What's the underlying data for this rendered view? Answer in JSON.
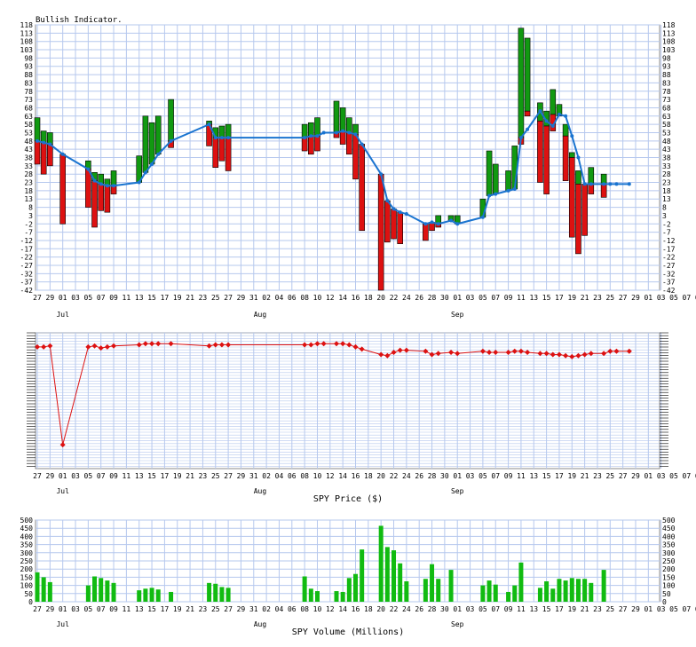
{
  "chart_data": [
    {
      "type": "bar",
      "title": "Bullish Indicator.",
      "ylim": [
        -42,
        118
      ],
      "yticks": [
        118,
        113,
        108,
        103,
        98,
        93,
        88,
        83,
        78,
        73,
        68,
        63,
        58,
        53,
        48,
        43,
        38,
        33,
        28,
        23,
        18,
        13,
        8,
        3,
        -2,
        -7,
        -12,
        -17,
        -22,
        -27,
        -32,
        -37,
        -42
      ],
      "x_tick_labels": [
        "27",
        "29",
        "01",
        "03",
        "05",
        "07",
        "09",
        "11",
        "13",
        "15",
        "17",
        "19",
        "21",
        "23",
        "25",
        "27",
        "29",
        "31",
        "02",
        "04",
        "06",
        "08",
        "10",
        "12",
        "14",
        "16",
        "18",
        "20",
        "22",
        "24",
        "26",
        "28",
        "30",
        "01",
        "03",
        "05",
        "07",
        "09",
        "11",
        "13",
        "15",
        "17",
        "19",
        "21",
        "23",
        "25",
        "27",
        "29",
        "01",
        "03",
        "05",
        "07",
        "09"
      ],
      "months": [
        {
          "label": "Jul",
          "day": 4
        },
        {
          "label": "Aug",
          "day": 35
        },
        {
          "label": "Sep",
          "day": 66
        }
      ],
      "bullish_series": {
        "name": "Bullish Indicator",
        "day": [
          0,
          1,
          2,
          4,
          8,
          9,
          10,
          11,
          12,
          16,
          17,
          18,
          19,
          21,
          27,
          28,
          29,
          30,
          42,
          43,
          44,
          45,
          47,
          48,
          49,
          50,
          51,
          54,
          55,
          56,
          57,
          58,
          61,
          62,
          63,
          65,
          66,
          70,
          71,
          72,
          74,
          75,
          76,
          77,
          79,
          80,
          81,
          82,
          83,
          84,
          85,
          86,
          87,
          89,
          90,
          91,
          93
        ],
        "value": [
          48,
          47,
          46,
          40,
          31,
          24,
          22,
          21,
          21,
          23,
          29,
          34,
          40,
          48,
          58,
          50,
          50,
          50,
          50,
          51,
          51,
          53,
          53,
          54,
          53,
          52,
          46,
          28,
          12,
          7,
          5,
          4,
          -2,
          -1,
          -2,
          0,
          -2,
          2,
          15,
          16,
          18,
          19,
          50,
          55,
          66,
          60,
          57,
          64,
          63,
          51,
          38,
          22,
          22,
          22,
          22,
          22,
          22
        ]
      },
      "bars": [
        {
          "day": 0,
          "open": 48,
          "close": 62
        },
        {
          "day": 0,
          "open": 48,
          "close": 34
        },
        {
          "day": 1,
          "open": 47,
          "close": 54
        },
        {
          "day": 1,
          "open": 47,
          "close": 28
        },
        {
          "day": 2,
          "open": 46,
          "close": 53
        },
        {
          "day": 2,
          "open": 46,
          "close": 33
        },
        {
          "day": 4,
          "open": 40,
          "close": -2
        },
        {
          "day": 8,
          "open": 31,
          "close": 36
        },
        {
          "day": 8,
          "open": 31,
          "close": 8
        },
        {
          "day": 9,
          "open": 24,
          "close": 29
        },
        {
          "day": 9,
          "open": 24,
          "close": -4
        },
        {
          "day": 10,
          "open": 22,
          "close": 28
        },
        {
          "day": 10,
          "open": 22,
          "close": 6
        },
        {
          "day": 11,
          "open": 21,
          "close": 25
        },
        {
          "day": 11,
          "open": 21,
          "close": 5
        },
        {
          "day": 12,
          "open": 21,
          "close": 30
        },
        {
          "day": 12,
          "open": 21,
          "close": 16
        },
        {
          "day": 16,
          "open": 23,
          "close": 39
        },
        {
          "day": 17,
          "open": 29,
          "close": 63
        },
        {
          "day": 18,
          "open": 34,
          "close": 59
        },
        {
          "day": 19,
          "open": 40,
          "close": 63
        },
        {
          "day": 21,
          "open": 48,
          "close": 73
        },
        {
          "day": 21,
          "open": 48,
          "close": 44
        },
        {
          "day": 27,
          "open": 58,
          "close": 60
        },
        {
          "day": 27,
          "open": 58,
          "close": 45
        },
        {
          "day": 28,
          "open": 50,
          "close": 56
        },
        {
          "day": 28,
          "open": 50,
          "close": 32
        },
        {
          "day": 29,
          "open": 50,
          "close": 57
        },
        {
          "day": 29,
          "open": 50,
          "close": 36
        },
        {
          "day": 30,
          "open": 50,
          "close": 58
        },
        {
          "day": 30,
          "open": 50,
          "close": 30
        },
        {
          "day": 42,
          "open": 50,
          "close": 58
        },
        {
          "day": 42,
          "open": 50,
          "close": 42
        },
        {
          "day": 43,
          "open": 51,
          "close": 59
        },
        {
          "day": 43,
          "open": 51,
          "close": 40
        },
        {
          "day": 44,
          "open": 51,
          "close": 62
        },
        {
          "day": 44,
          "open": 51,
          "close": 42
        },
        {
          "day": 47,
          "open": 53,
          "close": 72
        },
        {
          "day": 47,
          "open": 53,
          "close": 50
        },
        {
          "day": 48,
          "open": 54,
          "close": 68
        },
        {
          "day": 48,
          "open": 54,
          "close": 46
        },
        {
          "day": 49,
          "open": 53,
          "close": 62
        },
        {
          "day": 49,
          "open": 53,
          "close": 40
        },
        {
          "day": 50,
          "open": 52,
          "close": 58
        },
        {
          "day": 50,
          "open": 52,
          "close": 25
        },
        {
          "day": 51,
          "open": 46,
          "close": 44
        },
        {
          "day": 51,
          "open": 46,
          "close": -6
        },
        {
          "day": 54,
          "open": 28,
          "close": -42
        },
        {
          "day": 55,
          "open": 12,
          "close": -13
        },
        {
          "day": 56,
          "open": 7,
          "close": -11
        },
        {
          "day": 57,
          "open": 5,
          "close": -14
        },
        {
          "day": 61,
          "open": -2,
          "close": -12
        },
        {
          "day": 62,
          "open": -1,
          "close": -6
        },
        {
          "day": 63,
          "open": -2,
          "close": 3
        },
        {
          "day": 63,
          "open": -2,
          "close": -4
        },
        {
          "day": 65,
          "open": 0,
          "close": 3
        },
        {
          "day": 66,
          "open": -2,
          "close": 3
        },
        {
          "day": 70,
          "open": 2,
          "close": 13
        },
        {
          "day": 71,
          "open": 15,
          "close": 42
        },
        {
          "day": 72,
          "open": 16,
          "close": 34
        },
        {
          "day": 74,
          "open": 18,
          "close": 30
        },
        {
          "day": 75,
          "open": 19,
          "close": 45
        },
        {
          "day": 76,
          "open": 50,
          "close": 116
        },
        {
          "day": 76,
          "open": 50,
          "close": 46
        },
        {
          "day": 77,
          "open": 66,
          "close": 110
        },
        {
          "day": 77,
          "open": 66,
          "close": 63
        },
        {
          "day": 79,
          "open": 60,
          "close": 71
        },
        {
          "day": 79,
          "open": 60,
          "close": 23
        },
        {
          "day": 80,
          "open": 57,
          "close": 66
        },
        {
          "day": 80,
          "open": 57,
          "close": 16
        },
        {
          "day": 81,
          "open": 64,
          "close": 79
        },
        {
          "day": 81,
          "open": 64,
          "close": 54
        },
        {
          "day": 82,
          "open": 63,
          "close": 70
        },
        {
          "day": 83,
          "open": 51,
          "close": 58
        },
        {
          "day": 83,
          "open": 51,
          "close": 24
        },
        {
          "day": 84,
          "open": 38,
          "close": 41
        },
        {
          "day": 84,
          "open": 38,
          "close": -10
        },
        {
          "day": 85,
          "open": 22,
          "close": 30
        },
        {
          "day": 85,
          "open": 22,
          "close": -20
        },
        {
          "day": 86,
          "open": 22,
          "close": -9
        },
        {
          "day": 87,
          "open": 22,
          "close": 32
        },
        {
          "day": 87,
          "open": 22,
          "close": 16
        },
        {
          "day": 89,
          "open": 22,
          "close": 28
        },
        {
          "day": 89,
          "open": 22,
          "close": 14
        }
      ],
      "colors": {
        "up": "#119911",
        "down": "#dd1111",
        "line": "#1a74d0",
        "grid": "#b6c8ee"
      }
    },
    {
      "type": "line",
      "xlabel": "SPY Price ($)",
      "x_tick_labels": [
        "27",
        "29",
        "01",
        "03",
        "05",
        "07",
        "09",
        "11",
        "13",
        "15",
        "17",
        "19",
        "21",
        "23",
        "25",
        "27",
        "29",
        "31",
        "02",
        "04",
        "06",
        "08",
        "10",
        "12",
        "14",
        "16",
        "18",
        "20",
        "22",
        "24",
        "26",
        "28",
        "30",
        "01",
        "03",
        "05",
        "07",
        "09",
        "11",
        "13",
        "15",
        "17",
        "19",
        "21",
        "23",
        "25",
        "27",
        "29",
        "01",
        "03",
        "05",
        "07",
        "09"
      ],
      "months": [
        {
          "label": "Jul",
          "day": 4
        },
        {
          "label": "Aug",
          "day": 35
        },
        {
          "label": "Sep",
          "day": 66
        }
      ],
      "series": [
        {
          "day": [
            0,
            1,
            2,
            4,
            8,
            9,
            10,
            11,
            12,
            16,
            17,
            18,
            19,
            21,
            27,
            28,
            29,
            30,
            42,
            43,
            44,
            45,
            47,
            48,
            49,
            50,
            51,
            54,
            55,
            56,
            57,
            58,
            61,
            62,
            63,
            65,
            66,
            70,
            71,
            72,
            74,
            75,
            76,
            77,
            79,
            80,
            81,
            82,
            83,
            84,
            85,
            86,
            87,
            89,
            90,
            91,
            93
          ],
          "price": [
            272,
            272,
            273,
            182,
            272,
            273,
            271,
            272,
            273,
            274,
            275,
            275,
            275,
            275,
            273,
            274,
            274,
            274,
            274,
            274,
            275,
            275,
            275,
            275,
            274,
            272,
            270,
            265,
            264,
            267,
            269,
            269,
            268,
            265,
            266,
            267,
            266,
            268,
            267,
            267,
            267,
            268,
            268,
            267,
            266,
            266,
            265,
            265,
            264,
            263,
            264,
            265,
            266,
            266,
            268,
            268,
            268
          ]
        }
      ],
      "colors": {
        "line": "#dd1111",
        "grid": "#b6c8ee"
      }
    },
    {
      "type": "bar",
      "xlabel": "SPY Volume (Millions)",
      "ylim": [
        0,
        500
      ],
      "yticks": [
        500,
        450,
        400,
        350,
        300,
        250,
        200,
        150,
        100,
        50,
        0
      ],
      "x_tick_labels": [
        "27",
        "29",
        "01",
        "03",
        "05",
        "07",
        "09",
        "11",
        "13",
        "15",
        "17",
        "19",
        "21",
        "23",
        "25",
        "27",
        "29",
        "31",
        "02",
        "04",
        "06",
        "08",
        "10",
        "12",
        "14",
        "16",
        "18",
        "20",
        "22",
        "24",
        "26",
        "28",
        "30",
        "01",
        "03",
        "05",
        "07",
        "09",
        "11",
        "13",
        "15",
        "17",
        "19",
        "21",
        "23",
        "25",
        "27",
        "29",
        "01",
        "03",
        "05",
        "07",
        "09"
      ],
      "months": [
        {
          "label": "Jul",
          "day": 4
        },
        {
          "label": "Aug",
          "day": 35
        },
        {
          "label": "Sep",
          "day": 66
        }
      ],
      "series": [
        {
          "day": [
            0,
            1,
            2,
            8,
            9,
            10,
            11,
            12,
            16,
            17,
            18,
            19,
            21,
            27,
            28,
            29,
            30,
            42,
            43,
            44,
            47,
            48,
            49,
            50,
            51,
            54,
            55,
            56,
            57,
            58,
            61,
            62,
            63,
            65,
            70,
            71,
            72,
            74,
            75,
            76,
            79,
            80,
            81,
            82,
            83,
            84,
            85,
            86,
            87,
            89
          ],
          "value": [
            180,
            150,
            120,
            100,
            155,
            145,
            130,
            115,
            70,
            80,
            85,
            75,
            60,
            115,
            110,
            90,
            85,
            155,
            80,
            65,
            65,
            60,
            145,
            170,
            320,
            465,
            335,
            315,
            235,
            125,
            140,
            230,
            140,
            195,
            100,
            130,
            105,
            60,
            100,
            240,
            85,
            125,
            80,
            140,
            130,
            145,
            140,
            140,
            115,
            195
          ]
        }
      ],
      "colors": {
        "bar": "#11bb11",
        "grid": "#b6c8ee"
      }
    }
  ]
}
